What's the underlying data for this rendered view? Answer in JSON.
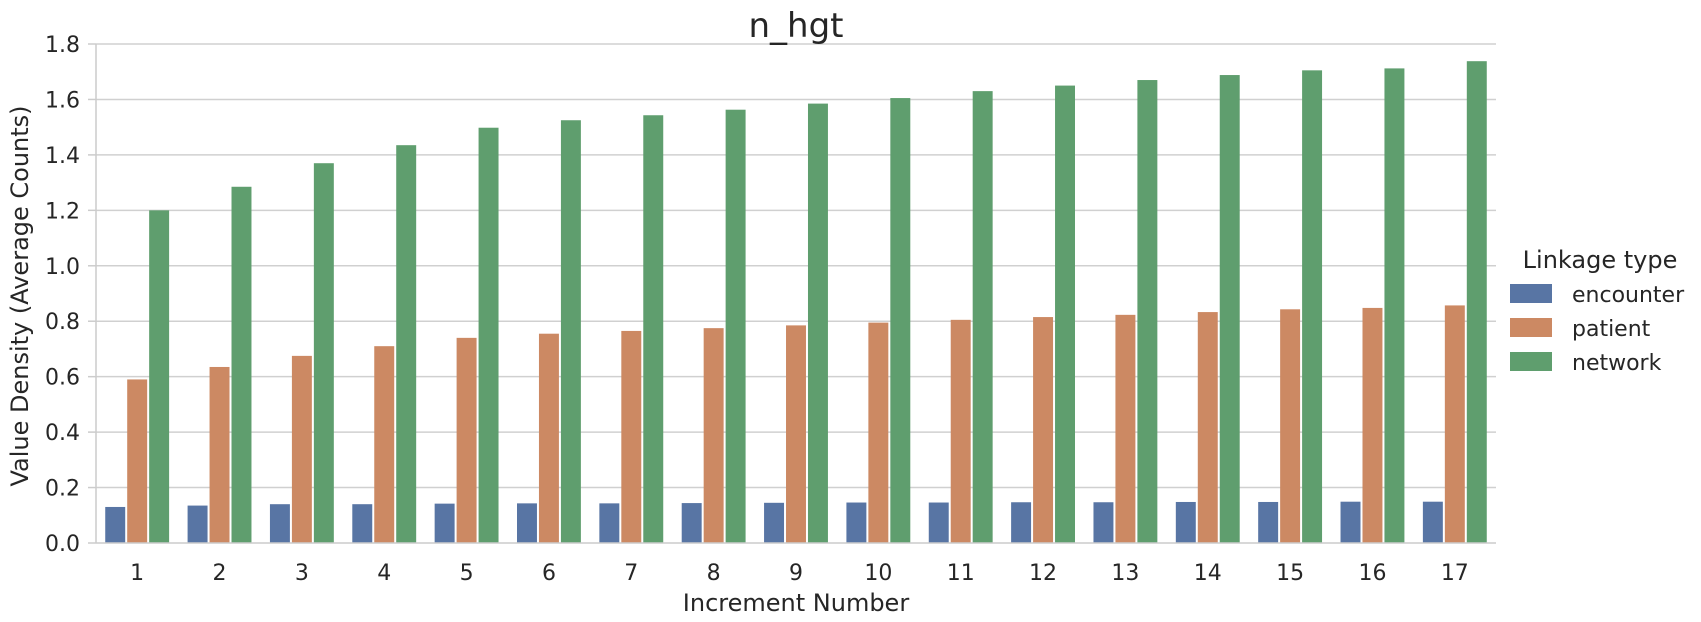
{
  "chart_data": {
    "type": "bar",
    "title": "n_hgt",
    "xlabel": "Increment Number",
    "ylabel": "Value Density (Average Counts)",
    "ylim": [
      0,
      1.8
    ],
    "yticks": [
      "0.0",
      "0.2",
      "0.4",
      "0.6",
      "0.8",
      "1.0",
      "1.2",
      "1.4",
      "1.6",
      "1.8"
    ],
    "grid": "horizontal",
    "legend_title": "Linkage type",
    "legend_placement": "right",
    "categories": [
      "1",
      "2",
      "3",
      "4",
      "5",
      "6",
      "7",
      "8",
      "9",
      "10",
      "11",
      "12",
      "13",
      "14",
      "15",
      "16",
      "17"
    ],
    "series": [
      {
        "name": "encounter",
        "color": "#5875a4",
        "values": [
          0.13,
          0.135,
          0.14,
          0.14,
          0.142,
          0.143,
          0.143,
          0.144,
          0.145,
          0.146,
          0.146,
          0.147,
          0.147,
          0.148,
          0.148,
          0.149,
          0.149
        ]
      },
      {
        "name": "patient",
        "color": "#cc8963",
        "values": [
          0.59,
          0.635,
          0.675,
          0.71,
          0.74,
          0.755,
          0.765,
          0.775,
          0.785,
          0.795,
          0.805,
          0.815,
          0.823,
          0.833,
          0.843,
          0.848,
          0.857
        ]
      },
      {
        "name": "network",
        "color": "#5f9e6e",
        "values": [
          1.2,
          1.285,
          1.37,
          1.435,
          1.498,
          1.525,
          1.543,
          1.563,
          1.585,
          1.605,
          1.63,
          1.65,
          1.67,
          1.688,
          1.705,
          1.712,
          1.738
        ]
      }
    ]
  }
}
